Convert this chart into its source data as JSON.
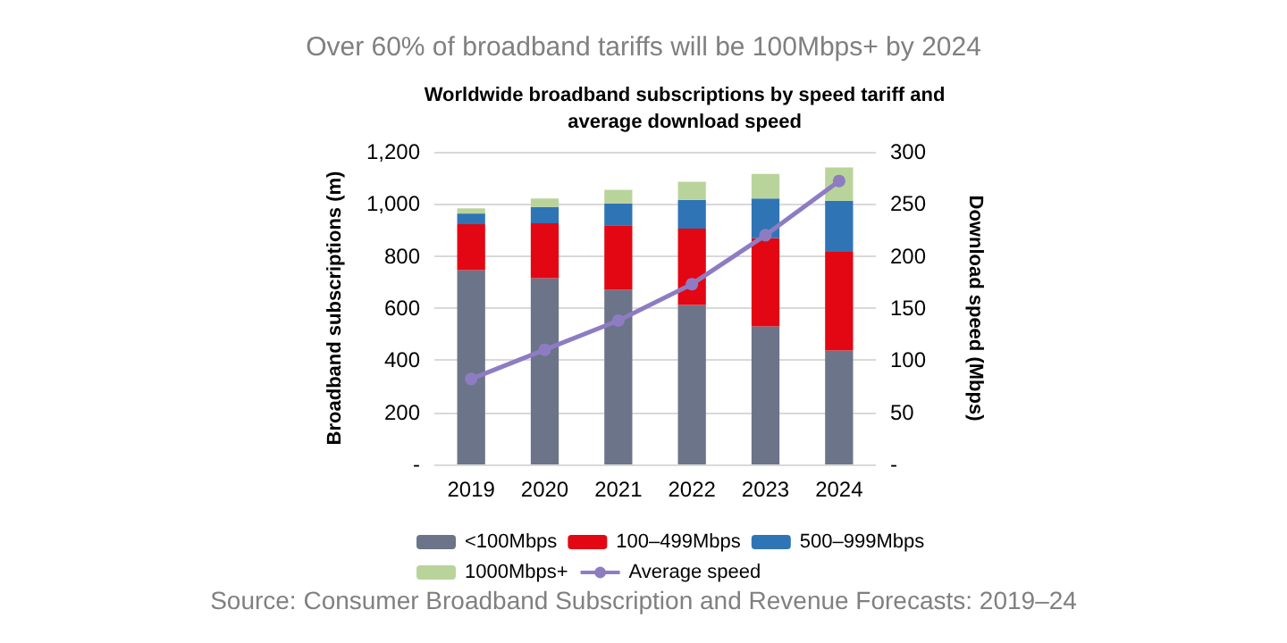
{
  "chart_data": {
    "type": "bar",
    "stacked": true,
    "title": "Over 60% of broadband tariffs will be 100Mbps+ by 2024",
    "subtitle": "Worldwide broadband subscriptions by speed tariff and\naverage download speed",
    "ylabel": "Broadband subscriptions (m)",
    "y2label": "Download speed (Mbps)",
    "categories": [
      "2019",
      "2020",
      "2021",
      "2022",
      "2023",
      "2024"
    ],
    "series": [
      {
        "name": "<100Mbps",
        "color": "#6b7489",
        "values": [
          746,
          715,
          670,
          612,
          530,
          437
        ]
      },
      {
        "name": "100–499Mbps",
        "color": "#e30613",
        "values": [
          176,
          211,
          248,
          293,
          338,
          379
        ]
      },
      {
        "name": "500–999Mbps",
        "color": "#2f75b5",
        "values": [
          41,
          62,
          84,
          111,
          153,
          196
        ]
      },
      {
        "name": "1000Mbps+",
        "color": "#b9d49a",
        "values": [
          20,
          33,
          52,
          69,
          94,
          128
        ]
      },
      {
        "name": "Average speed",
        "type": "line",
        "axis": "y2",
        "color": "#8e7cc3",
        "marker": "circle",
        "values": [
          82,
          110,
          138,
          173,
          220,
          272
        ]
      }
    ],
    "ylim": [
      0,
      1200
    ],
    "yticks": [
      {
        "value": 0,
        "label": "-"
      },
      200,
      400,
      600,
      800,
      {
        "value": 1000,
        "label": "1,000"
      },
      {
        "value": 1200,
        "label": "1,200"
      }
    ],
    "y2lim": [
      0,
      300
    ],
    "y2ticks": [
      {
        "value": 0,
        "label": "-"
      },
      50,
      100,
      150,
      200,
      250,
      300
    ],
    "grid": "y",
    "legend": "bottom",
    "annotations": [
      "Source: Consumer Broadband Subscription and Revenue Forecasts: 2019–24"
    ]
  }
}
